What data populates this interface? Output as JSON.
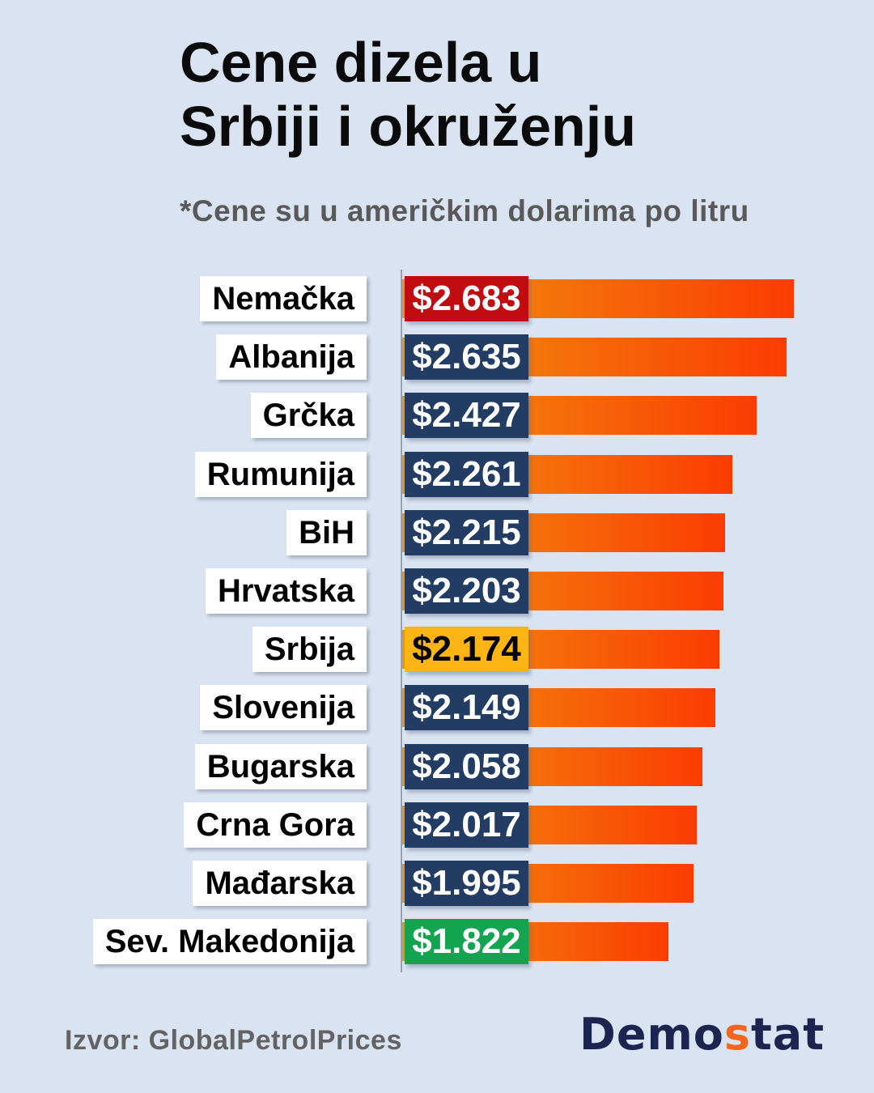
{
  "header": {
    "title_line1": "Cene dizela u",
    "title_line2": "Srbiji i okruženju",
    "subtitle": "*Cene su u američkim dolarima po litru"
  },
  "chart_data": {
    "type": "bar",
    "orientation": "horizontal",
    "title": "Cene dizela u Srbiji i okruženju",
    "note": "*Cene su u američkim dolarima po litru",
    "unit": "USD per liter",
    "xlim": [
      0,
      2.683
    ],
    "grid": false,
    "legend": false,
    "categories": [
      "Nemačka",
      "Albanija",
      "Grčka",
      "Rumunija",
      "BiH",
      "Hrvatska",
      "Srbija",
      "Slovenija",
      "Bugarska",
      "Crna Gora",
      "Mađarska",
      "Sev. Makedonija"
    ],
    "values": [
      2.683,
      2.635,
      2.427,
      2.261,
      2.215,
      2.203,
      2.174,
      2.149,
      2.058,
      2.017,
      1.995,
      1.822
    ],
    "rows": [
      {
        "label": "Nemačka",
        "value": 2.683,
        "value_label": "$2.683",
        "box_color": "#c00b10",
        "text_color": "#ffffff"
      },
      {
        "label": "Albanija",
        "value": 2.635,
        "value_label": "$2.635",
        "box_color": "#223c63",
        "text_color": "#ffffff"
      },
      {
        "label": "Grčka",
        "value": 2.427,
        "value_label": "$2.427",
        "box_color": "#223c63",
        "text_color": "#ffffff"
      },
      {
        "label": "Rumunija",
        "value": 2.261,
        "value_label": "$2.261",
        "box_color": "#223c63",
        "text_color": "#ffffff"
      },
      {
        "label": "BiH",
        "value": 2.215,
        "value_label": "$2.215",
        "box_color": "#223c63",
        "text_color": "#ffffff"
      },
      {
        "label": "Hrvatska",
        "value": 2.203,
        "value_label": "$2.203",
        "box_color": "#223c63",
        "text_color": "#ffffff"
      },
      {
        "label": "Srbija",
        "value": 2.174,
        "value_label": "$2.174",
        "box_color": "#fcb514",
        "text_color": "#000000"
      },
      {
        "label": "Slovenija",
        "value": 2.149,
        "value_label": "$2.149",
        "box_color": "#223c63",
        "text_color": "#ffffff"
      },
      {
        "label": "Bugarska",
        "value": 2.058,
        "value_label": "$2.058",
        "box_color": "#223c63",
        "text_color": "#ffffff"
      },
      {
        "label": "Crna Gora",
        "value": 2.017,
        "value_label": "$2.017",
        "box_color": "#223c63",
        "text_color": "#ffffff"
      },
      {
        "label": "Mađarska",
        "value": 1.995,
        "value_label": "$1.995",
        "box_color": "#223c63",
        "text_color": "#ffffff"
      },
      {
        "label": "Sev. Makedonija",
        "value": 1.822,
        "value_label": "$1.822",
        "box_color": "#13a44f",
        "text_color": "#ffffff"
      }
    ],
    "colors": {
      "background": "#d9e3f1",
      "bar_gradient_start": "#f0940e",
      "bar_gradient_end": "#fb3c03",
      "box_default": "#223c63",
      "box_highest": "#c00b10",
      "box_serbia": "#fcb514",
      "box_lowest": "#13a44f",
      "axis_line": "#99a1ab"
    }
  },
  "footer": {
    "source": "Izvor: GlobalPetrolPrices",
    "logo_prefix": "Demo",
    "logo_accent": "s",
    "logo_suffix": "tat",
    "logo_navy": "#1c2450",
    "logo_orange": "#f4661f"
  }
}
